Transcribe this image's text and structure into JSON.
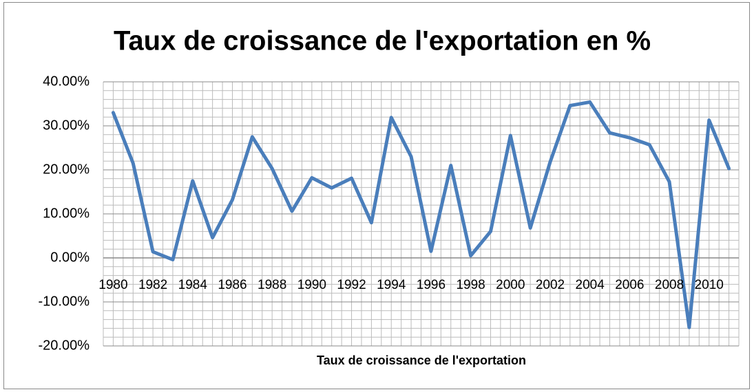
{
  "chart_data": {
    "type": "line",
    "title": "Taux de croissance de l'exportation en %",
    "x_label": "Taux de croissance de l'exportation",
    "categories": [
      "1980",
      null,
      "1982",
      null,
      "1984",
      null,
      "1986",
      null,
      "1988",
      null,
      "1990",
      null,
      "1992",
      null,
      "1994",
      null,
      "1996",
      null,
      "1998",
      null,
      "2000",
      null,
      "2002",
      null,
      "2004",
      null,
      "2006",
      null,
      "2008",
      null,
      "2010",
      null
    ],
    "series": [
      {
        "color": "#4a7ebb",
        "values": [
          33,
          21.5,
          1.4,
          -0.4,
          17.5,
          4.6,
          13.2,
          27.5,
          20.3,
          10.6,
          18.2,
          15.9,
          18.1,
          8.0,
          31.9,
          23.0,
          1.5,
          21.0,
          0.5,
          6.0,
          27.8,
          6.8,
          21.8,
          34.6,
          35.4,
          28.4,
          27.3,
          25.7,
          17.3,
          -15.8,
          31.3,
          20.3
        ]
      }
    ],
    "ylim": [
      -20,
      40
    ],
    "yticks": [
      {
        "value": -20,
        "label": "-20.00%"
      },
      {
        "value": -10,
        "label": "-10.00%"
      },
      {
        "value": 0,
        "label": "0.00%"
      },
      {
        "value": 10,
        "label": "10.00%"
      },
      {
        "value": 20,
        "label": "20.00%"
      },
      {
        "value": 30,
        "label": "30.00%"
      },
      {
        "value": 40,
        "label": "40.00%"
      }
    ],
    "grid": true,
    "minor_grid": true
  }
}
